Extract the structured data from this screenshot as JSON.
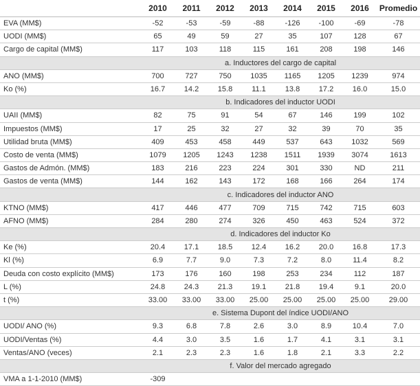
{
  "table": {
    "columns": [
      "2010",
      "2011",
      "2012",
      "2013",
      "2014",
      "2015",
      "2016",
      "Promedio"
    ],
    "rows": [
      {
        "label": "EVA (MM$)",
        "values": [
          "-52",
          "-53",
          "-59",
          "-88",
          "-126",
          "-100",
          "-69",
          "-78"
        ]
      },
      {
        "label": "UODI (MM$)",
        "values": [
          "65",
          "49",
          "59",
          "27",
          "35",
          "107",
          "128",
          "67"
        ]
      },
      {
        "label": "Cargo de capital (MM$)",
        "values": [
          "117",
          "103",
          "118",
          "115",
          "161",
          "208",
          "198",
          "146"
        ]
      },
      {
        "section": "a. Inductores del cargo de capital"
      },
      {
        "label": "ANO (MM$)",
        "values": [
          "700",
          "727",
          "750",
          "1035",
          "1165",
          "1205",
          "1239",
          "974"
        ]
      },
      {
        "label": "Ko (%)",
        "values": [
          "16.7",
          "14.2",
          "15.8",
          "11.1",
          "13.8",
          "17.2",
          "16.0",
          "15.0"
        ]
      },
      {
        "section": "b. Indicadores del inductor UODI"
      },
      {
        "label": "UAII (MM$)",
        "values": [
          "82",
          "75",
          "91",
          "54",
          "67",
          "146",
          "199",
          "102"
        ]
      },
      {
        "label": "Impuestos (MM$)",
        "values": [
          "17",
          "25",
          "32",
          "27",
          "32",
          "39",
          "70",
          "35"
        ]
      },
      {
        "label": "Utilidad bruta (MM$)",
        "values": [
          "409",
          "453",
          "458",
          "449",
          "537",
          "643",
          "1032",
          "569"
        ]
      },
      {
        "label": "Costo de venta (MM$)",
        "values": [
          "1079",
          "1205",
          "1243",
          "1238",
          "1511",
          "1939",
          "3074",
          "1613"
        ]
      },
      {
        "label": "Gastos de Admón. (MM$)",
        "values": [
          "183",
          "216",
          "223",
          "224",
          "301",
          "330",
          "ND",
          "211"
        ]
      },
      {
        "label": "Gastos de venta (MM$)",
        "values": [
          "144",
          "162",
          "143",
          "172",
          "168",
          "166",
          "264",
          "174"
        ]
      },
      {
        "section": "c. Indicadores del inductor ANO"
      },
      {
        "label": "KTNO (MM$)",
        "values": [
          "417",
          "446",
          "477",
          "709",
          "715",
          "742",
          "715",
          "603"
        ]
      },
      {
        "label": "AFNO (MM$)",
        "values": [
          "284",
          "280",
          "274",
          "326",
          "450",
          "463",
          "524",
          "372"
        ]
      },
      {
        "section": "d. Indicadores del inductor Ko"
      },
      {
        "label": "Ke (%)",
        "values": [
          "20.4",
          "17.1",
          "18.5",
          "12.4",
          "16.2",
          "20.0",
          "16.8",
          "17.3"
        ]
      },
      {
        "label": "Kl (%)",
        "values": [
          "6.9",
          "7.7",
          "9.0",
          "7.3",
          "7.2",
          "8.0",
          "11.4",
          "8.2"
        ]
      },
      {
        "label": "Deuda con costo explícito (MM$)",
        "values": [
          "173",
          "176",
          "160",
          "198",
          "253",
          "234",
          "112",
          "187"
        ]
      },
      {
        "label": "L (%)",
        "values": [
          "24.8",
          "24.3",
          "21.3",
          "19.1",
          "21.8",
          "19.4",
          "9.1",
          "20.0"
        ]
      },
      {
        "label": "t (%)",
        "values": [
          "33.00",
          "33.00",
          "33.00",
          "25.00",
          "25.00",
          "25.00",
          "25.00",
          "29.00"
        ]
      },
      {
        "section": "e. Sistema Dupont del índice UODI/ANO"
      },
      {
        "label": "UODI/ ANO (%)",
        "values": [
          "9.3",
          "6.8",
          "7.8",
          "2.6",
          "3.0",
          "8.9",
          "10.4",
          "7.0"
        ]
      },
      {
        "label": "UODI/Ventas (%)",
        "values": [
          "4.4",
          "3.0",
          "3.5",
          "1.6",
          "1.7",
          "4.1",
          "3.1",
          "3.1"
        ]
      },
      {
        "label": "Ventas/ANO (veces)",
        "values": [
          "2.1",
          "2.3",
          "2.3",
          "1.6",
          "1.8",
          "2.1",
          "3.3",
          "2.2"
        ]
      },
      {
        "section": "f. Valor del mercado agregado"
      },
      {
        "label": "VMA a 1-1-2010 (MM$)",
        "values": [
          "-309"
        ]
      }
    ]
  }
}
